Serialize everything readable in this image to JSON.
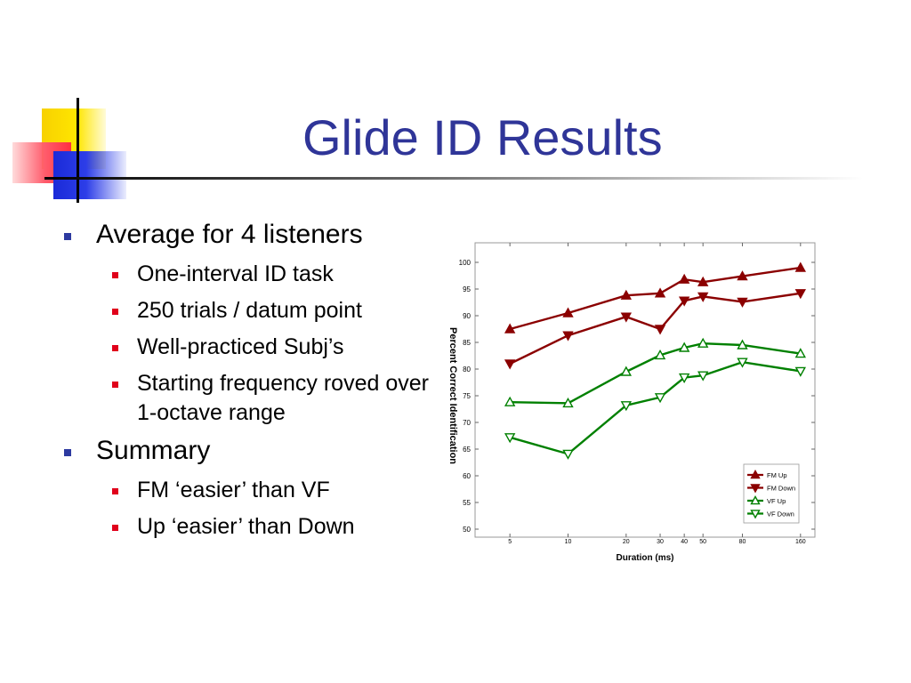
{
  "slide": {
    "title": "Glide ID Results",
    "bullets": [
      {
        "text": "Average for 4 listeners",
        "sub": [
          "One-interval ID task",
          "250 trials / datum point",
          "Well-practiced Subj’s",
          "Starting frequency roved over 1-octave range"
        ]
      },
      {
        "text": "Summary",
        "sub": [
          "FM ‘easier’ than VF",
          "Up ‘easier’ than Down"
        ]
      }
    ]
  },
  "chart_data": {
    "type": "line",
    "xlabel": "Duration (ms)",
    "ylabel": "Percent Correct Identification",
    "xscale": "log",
    "xlim": [
      3.3,
      190
    ],
    "ylim": [
      50,
      100
    ],
    "xticks": [
      5,
      10,
      20,
      30,
      40,
      50,
      80,
      160
    ],
    "yticks": [
      50,
      55,
      60,
      65,
      70,
      75,
      80,
      85,
      90,
      95,
      100
    ],
    "x": [
      5,
      10,
      20,
      30,
      40,
      50,
      80,
      160
    ],
    "legend_position": "bottom-right",
    "series": [
      {
        "name": "FM Up",
        "color": "#8b0000",
        "marker": "triangle-up-filled",
        "values": [
          87.5,
          90.5,
          93.8,
          94.2,
          96.8,
          96.3,
          97.4,
          99.0
        ]
      },
      {
        "name": "FM Down",
        "color": "#8b0000",
        "marker": "triangle-down-filled",
        "values": [
          81.0,
          86.3,
          89.8,
          87.5,
          92.8,
          93.6,
          92.6,
          94.2
        ]
      },
      {
        "name": "VF Up",
        "color": "#008000",
        "marker": "triangle-up-open",
        "values": [
          73.8,
          73.6,
          79.5,
          82.6,
          84.0,
          84.8,
          84.5,
          82.9
        ]
      },
      {
        "name": "VF Down",
        "color": "#008000",
        "marker": "triangle-down-open",
        "values": [
          67.2,
          64.1,
          73.2,
          74.7,
          78.4,
          78.8,
          81.3,
          79.6
        ]
      }
    ]
  }
}
